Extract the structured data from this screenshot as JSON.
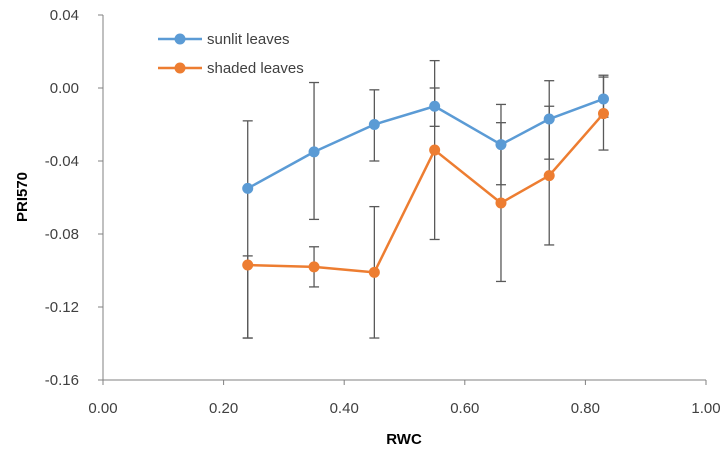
{
  "chart_data": {
    "type": "line",
    "title": "",
    "xlabel": "RWC",
    "ylabel": "PRI570",
    "xlim": [
      0.0,
      1.0
    ],
    "ylim": [
      -0.16,
      0.04
    ],
    "xticks": [
      "0.00",
      "0.20",
      "0.40",
      "0.60",
      "0.80",
      "1.00"
    ],
    "yticks": [
      "0.04",
      "0.00",
      "-0.04",
      "-0.08",
      "-0.12",
      "-0.16"
    ],
    "grid": false,
    "legend_position": "top-left",
    "series": [
      {
        "name": "sunlit leaves",
        "color": "#5B9BD5",
        "x": [
          0.24,
          0.35,
          0.45,
          0.55,
          0.66,
          0.74,
          0.83
        ],
        "y": [
          -0.055,
          -0.035,
          -0.02,
          -0.01,
          -0.031,
          -0.017,
          -0.006
        ],
        "err_low": [
          -0.137,
          -0.072,
          -0.04,
          -0.021,
          -0.053,
          -0.039,
          -0.016
        ],
        "err_high": [
          -0.018,
          0.003,
          -0.001,
          0.015,
          -0.009,
          0.004,
          0.007
        ]
      },
      {
        "name": "shaded leaves",
        "color": "#ED7D31",
        "x": [
          0.24,
          0.35,
          0.45,
          0.55,
          0.66,
          0.74,
          0.83
        ],
        "y": [
          -0.097,
          -0.098,
          -0.101,
          -0.034,
          -0.063,
          -0.048,
          -0.014
        ],
        "err_low": [
          -0.137,
          -0.109,
          -0.137,
          -0.083,
          -0.106,
          -0.086,
          -0.034
        ],
        "err_high": [
          -0.092,
          -0.087,
          -0.065,
          0.0,
          -0.019,
          -0.01,
          0.006
        ]
      }
    ]
  }
}
